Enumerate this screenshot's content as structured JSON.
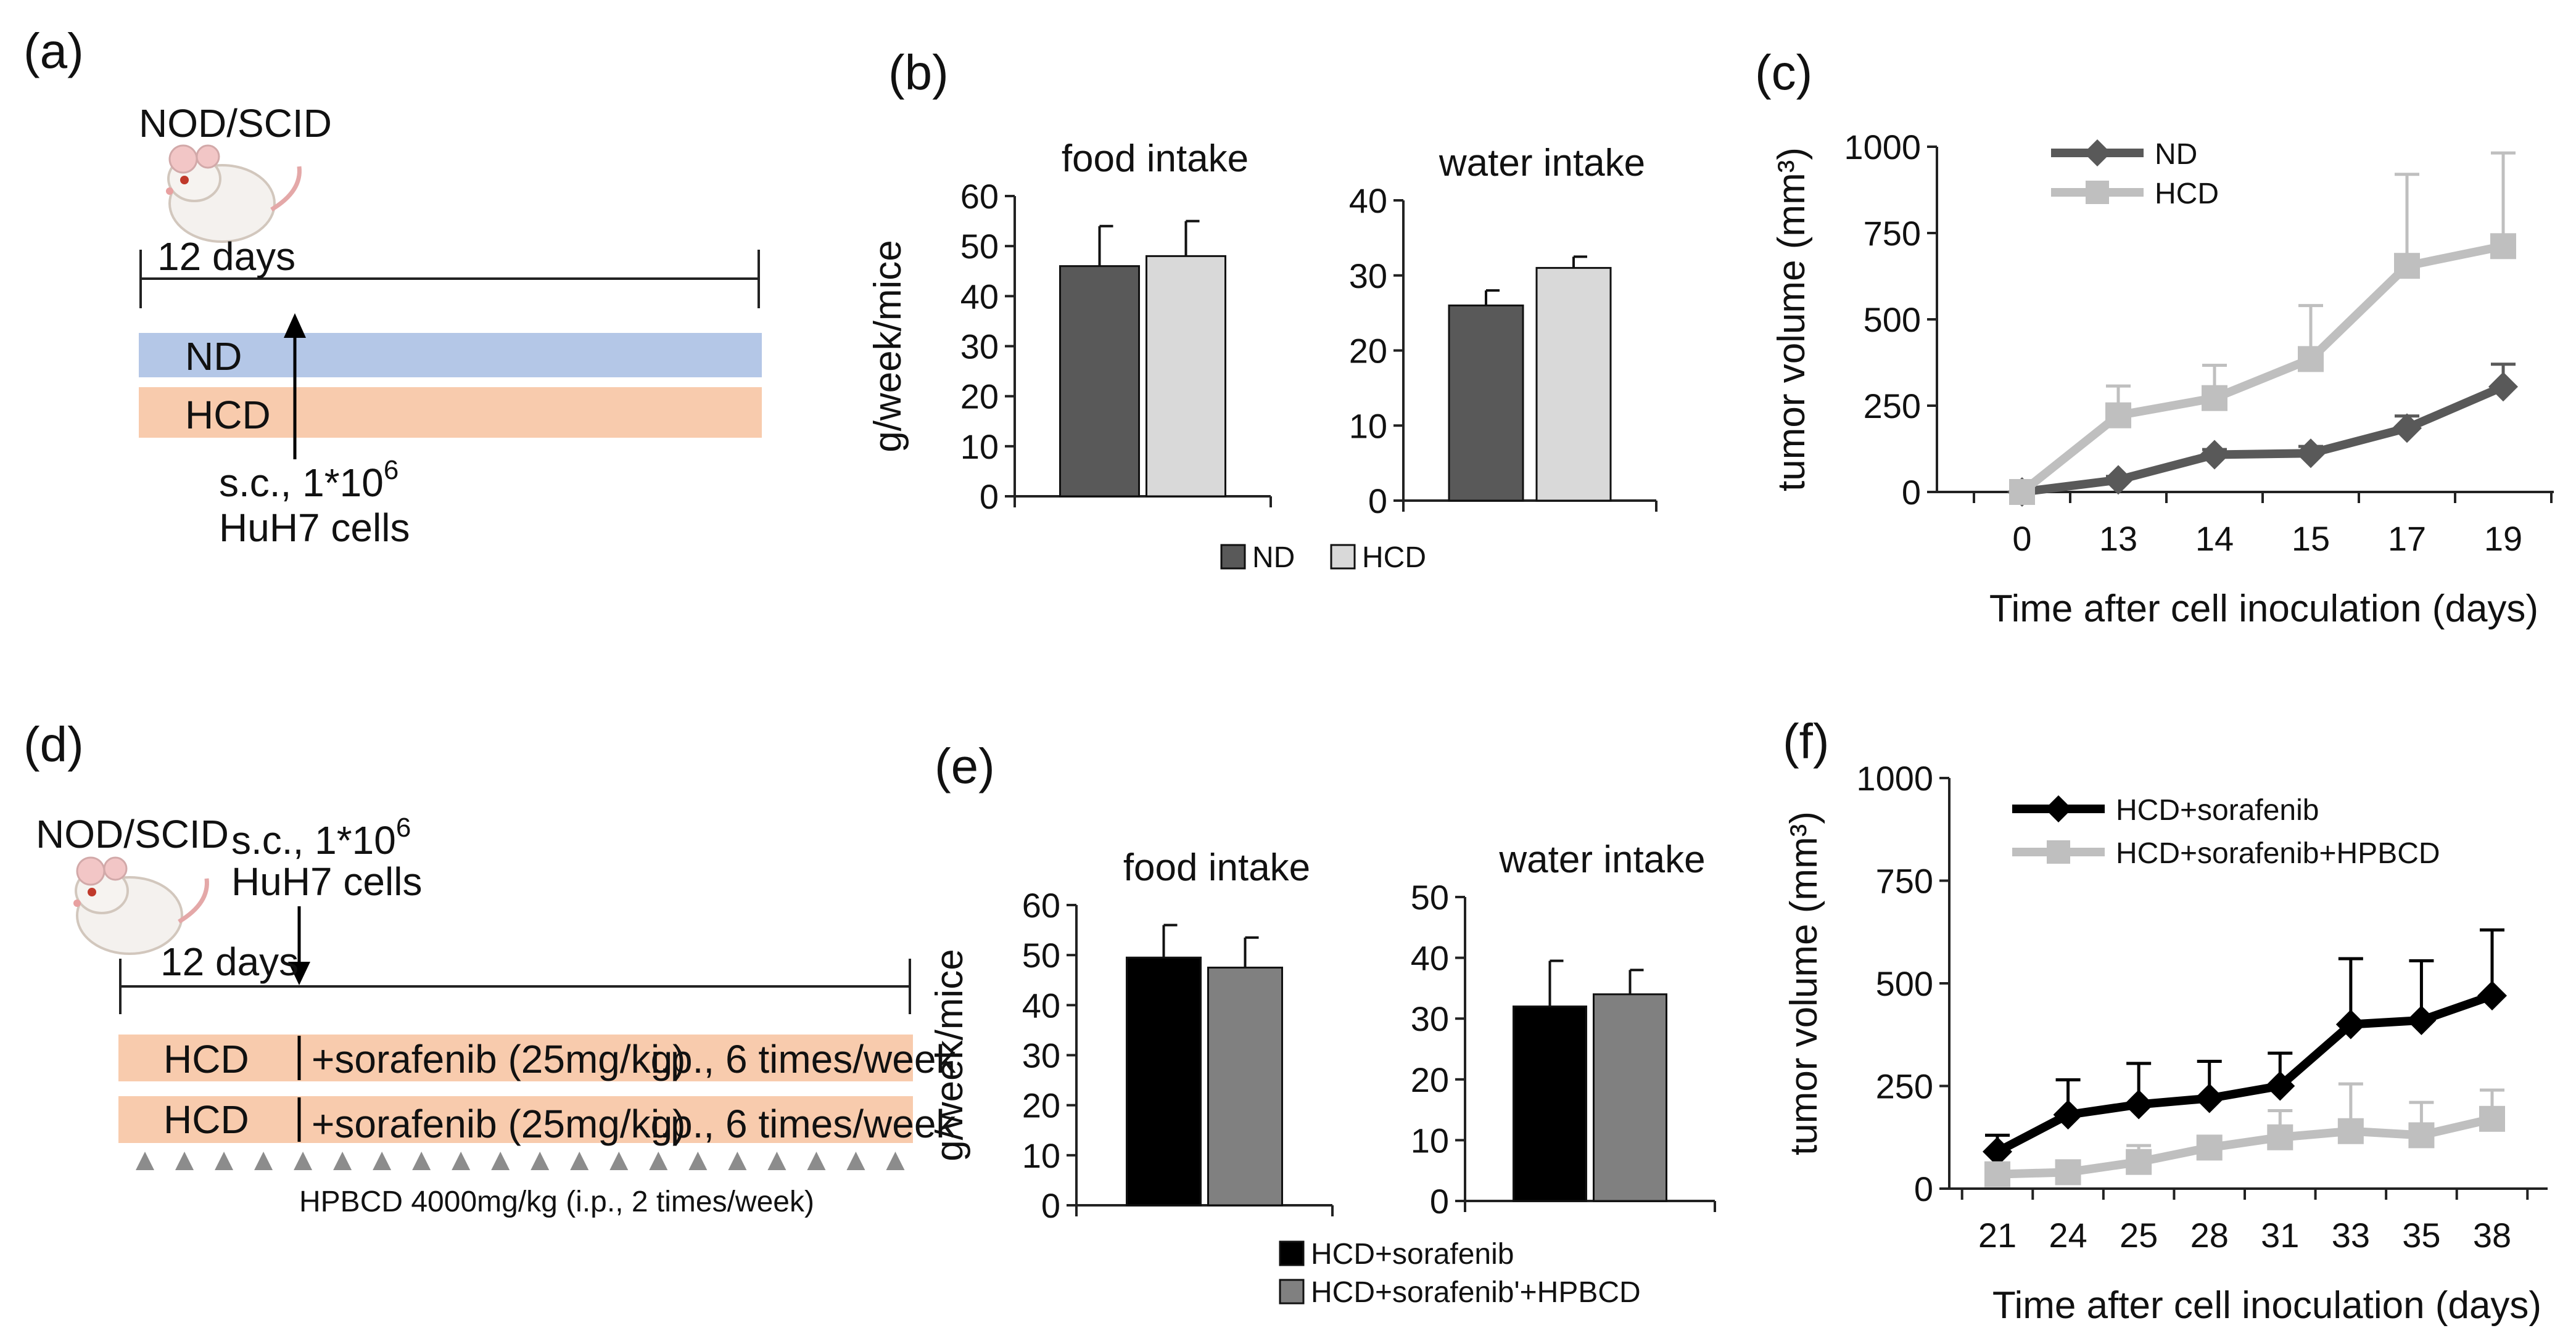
{
  "panels": {
    "a": "(a)",
    "b": "(b)",
    "c": "(c)",
    "d": "(d)",
    "e": "(e)",
    "f": "(f)"
  },
  "schematic_a": {
    "strain": "NOD/SCID",
    "days": "12 days",
    "bar1": "ND",
    "bar2": "HCD",
    "inj_line1": "s.c., 1*10",
    "inj_sup": "6",
    "inj_line2": "HuH7 cells",
    "colors": {
      "nd": "#b4c7e7",
      "hcd": "#f8cbad"
    }
  },
  "schematic_d": {
    "strain": "NOD/SCID",
    "inj_line1": "s.c., 1*10",
    "inj_sup": "6",
    "inj_line2": "HuH7 cells",
    "days": "12 days",
    "row1_left": "HCD",
    "row1_mid": "+sorafenib (25mg/kg)",
    "row1_right": "i.p., 6 times/week",
    "row2_left": "HCD",
    "row2_mid": "+sorafenib (25mg/kg)",
    "row2_right": "i.p., 6 times/week",
    "hpbcd": "HPBCD 4000mg/kg (i.p., 2 times/week)",
    "triangles": 20,
    "colors": {
      "hcd": "#f8cbad",
      "triangle": "#8c8c8c"
    }
  },
  "chart_data": [
    {
      "id": "b-food",
      "type": "bar",
      "title": "food intake",
      "ylabel": "g/week/mice",
      "ylim": [
        0,
        60
      ],
      "yticks": [
        0,
        10,
        20,
        30,
        40,
        50,
        60
      ],
      "series": [
        {
          "name": "ND",
          "values": [
            46
          ],
          "errors": [
            8
          ],
          "color": "#595959"
        },
        {
          "name": "HCD",
          "values": [
            48
          ],
          "errors": [
            7
          ],
          "color": "#d9d9d9"
        }
      ]
    },
    {
      "id": "b-water",
      "type": "bar",
      "title": "water intake",
      "ylim": [
        0,
        40
      ],
      "yticks": [
        0,
        10,
        20,
        30,
        40
      ],
      "series": [
        {
          "name": "ND",
          "values": [
            26
          ],
          "errors": [
            2
          ],
          "color": "#595959"
        },
        {
          "name": "HCD",
          "values": [
            31
          ],
          "errors": [
            1.5
          ],
          "color": "#d9d9d9"
        }
      ],
      "legend": [
        "ND",
        "HCD"
      ]
    },
    {
      "id": "c",
      "type": "line",
      "ylabel": "tumor volume (mm³)",
      "xlabel": "Time after cell inoculation (days)",
      "categories": [
        "0",
        "13",
        "14",
        "15",
        "17",
        "19"
      ],
      "ylim": [
        0,
        1000
      ],
      "yticks": [
        0,
        250,
        500,
        750,
        1000
      ],
      "legend_position": "top-left",
      "series": [
        {
          "name": "ND",
          "values": [
            0,
            35,
            108,
            112,
            185,
            305
          ],
          "errors": [
            0,
            10,
            15,
            20,
            35,
            65
          ],
          "color": "#595959",
          "marker": "diamond"
        },
        {
          "name": "HCD",
          "values": [
            0,
            222,
            272,
            385,
            655,
            712
          ],
          "errors": [
            0,
            85,
            95,
            155,
            265,
            270
          ],
          "color": "#bfbfbf",
          "marker": "square"
        }
      ]
    },
    {
      "id": "e-food",
      "type": "bar",
      "title": "food intake",
      "ylabel": "g/week/mice",
      "ylim": [
        0,
        60
      ],
      "yticks": [
        0,
        10,
        20,
        30,
        40,
        50,
        60
      ],
      "series": [
        {
          "name": "HCD+sorafenib",
          "values": [
            49.5
          ],
          "errors": [
            6.5
          ],
          "color": "#000000"
        },
        {
          "name": "HCD+sorafenib'+HPBCD",
          "values": [
            47.5
          ],
          "errors": [
            6
          ],
          "color": "#808080"
        }
      ]
    },
    {
      "id": "e-water",
      "type": "bar",
      "title": "water intake",
      "ylim": [
        0,
        50
      ],
      "yticks": [
        0,
        10,
        20,
        30,
        40,
        50
      ],
      "series": [
        {
          "name": "HCD+sorafenib",
          "values": [
            32
          ],
          "errors": [
            7.5
          ],
          "color": "#000000"
        },
        {
          "name": "HCD+sorafenib'+HPBCD",
          "values": [
            34
          ],
          "errors": [
            4
          ],
          "color": "#808080"
        }
      ],
      "legend": [
        "HCD+sorafenib",
        "HCD+sorafenib'+HPBCD"
      ]
    },
    {
      "id": "f",
      "type": "line",
      "ylabel": "tumor volume (mm³)",
      "xlabel": "Time after cell inoculation (days)",
      "categories": [
        "21",
        "24",
        "25",
        "28",
        "31",
        "33",
        "35",
        "38"
      ],
      "ylim": [
        0,
        1000
      ],
      "yticks": [
        0,
        250,
        500,
        750,
        1000
      ],
      "legend_position": "top-left",
      "series": [
        {
          "name": "HCD+sorafenib",
          "values": [
            90,
            180,
            205,
            220,
            250,
            400,
            410,
            470
          ],
          "errors": [
            40,
            85,
            100,
            90,
            80,
            160,
            145,
            160
          ],
          "color": "#000000",
          "marker": "diamond"
        },
        {
          "name": "HCD+sorafenib+HPBCD",
          "values": [
            35,
            40,
            65,
            100,
            125,
            140,
            130,
            170
          ],
          "errors": [
            10,
            15,
            40,
            20,
            65,
            115,
            80,
            70
          ],
          "color": "#bfbfbf",
          "marker": "square"
        }
      ]
    }
  ]
}
